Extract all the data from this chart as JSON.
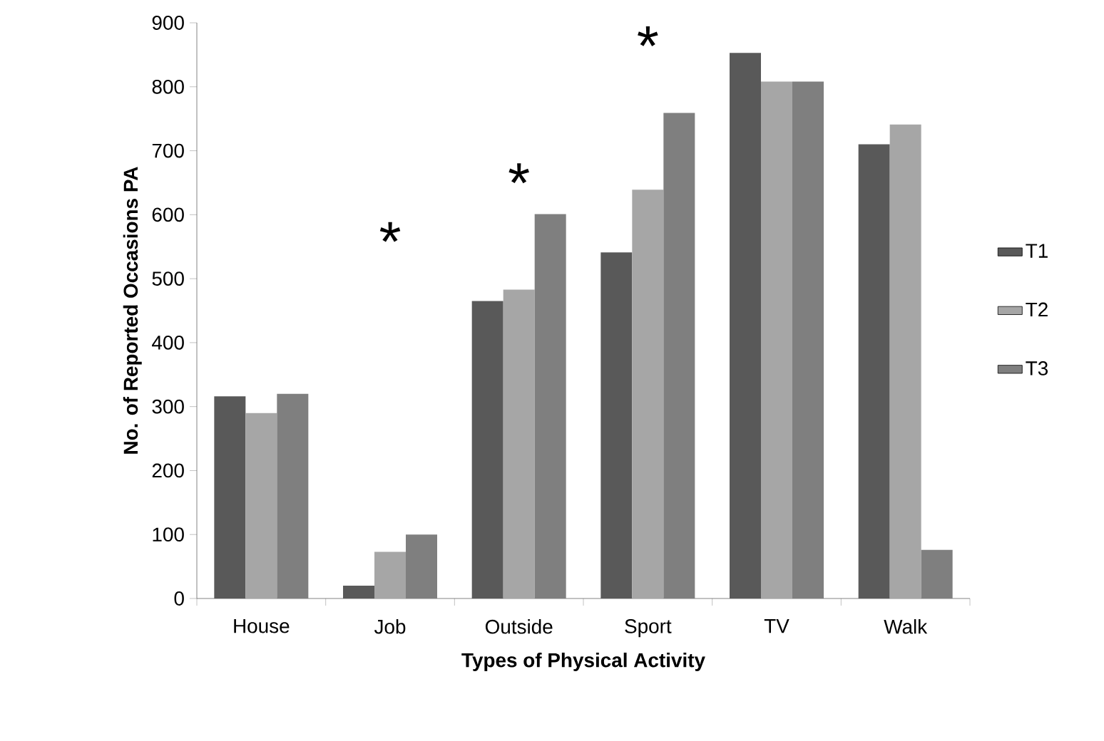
{
  "chart_data": {
    "type": "bar",
    "xlabel": "Types of Physical Activity",
    "ylabel": "No. of Reported Occasions PA",
    "categories": [
      "House",
      "Job",
      "Outside",
      "Sport",
      "TV",
      "Walk"
    ],
    "series": [
      {
        "name": "T1",
        "color": "#595959",
        "values": [
          316,
          20,
          465,
          541,
          853,
          710
        ]
      },
      {
        "name": "T2",
        "color": "#a6a6a6",
        "values": [
          290,
          73,
          483,
          639,
          808,
          741
        ]
      },
      {
        "name": "T3",
        "color": "#7f7f7f",
        "values": [
          320,
          100,
          601,
          759,
          808,
          76
        ]
      }
    ],
    "ylim": [
      0,
      900
    ],
    "yticks": [
      0,
      100,
      200,
      300,
      400,
      500,
      600,
      700,
      800,
      900
    ],
    "grid": false,
    "legend": "right",
    "annotations": [
      "*",
      "*",
      "*"
    ]
  }
}
